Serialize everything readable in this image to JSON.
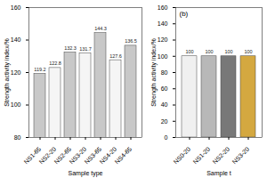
{
  "chart_data": [
    {
      "type": "bar",
      "categories": [
        "NS1-65",
        "NS2-20",
        "NS2-65",
        "NS3-20",
        "NS3-65",
        "NS4-20",
        "NS4-65"
      ],
      "values": [
        119.2,
        122.8,
        132.3,
        131.7,
        144.3,
        127.6,
        136.5
      ],
      "colors": [
        "#c8c8c8",
        "#f5f5f5",
        "#c8c8c8",
        "#f5f5f5",
        "#c8c8c8",
        "#f5f5f5",
        "#c8c8c8"
      ],
      "xlabel": "Sample type",
      "ylabel": "Strength activity index/%",
      "ylim": [
        80,
        160
      ],
      "yticks": [
        80,
        100,
        120,
        140,
        160
      ],
      "grid": false,
      "data_labels": true
    },
    {
      "type": "bar",
      "categories": [
        "NS0-20",
        "NS1-20",
        "NS2-20",
        "NS3-20"
      ],
      "values": [
        100,
        100,
        100,
        100
      ],
      "colors": [
        "#f0f0f0",
        "#b8b8b8",
        "#787878",
        "#d4a840"
      ],
      "xlabel": "Sample t",
      "ylabel": "Strength activity index/%",
      "ylim": [
        0,
        160
      ],
      "yticks": [
        0,
        20,
        40,
        60,
        80,
        100,
        120,
        140,
        160
      ],
      "grid": false,
      "data_labels": true,
      "annotations": [
        "(b)"
      ]
    }
  ]
}
